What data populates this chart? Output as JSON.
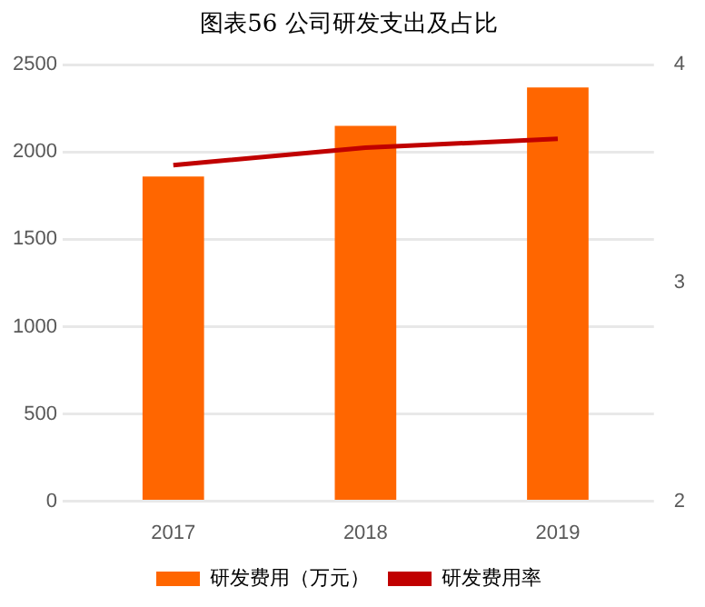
{
  "chart_data": {
    "type": "bar",
    "title": "图表56 公司研发支出及占比",
    "categories": [
      "2017",
      "2018",
      "2019"
    ],
    "series": [
      {
        "name": "研发费用（万元）",
        "color": "#ff6600",
        "values": [
          1860,
          2150,
          2370
        ]
      },
      {
        "name": "研发费用率",
        "type": "line",
        "axis": "y2",
        "color": "#c00000",
        "values": [
          3.54,
          3.62,
          3.66
        ]
      }
    ],
    "ylim": [
      0,
      2500
    ],
    "yticks": [
      0,
      500,
      1000,
      1500,
      2000,
      2500
    ],
    "y2lim": [
      2,
      4
    ],
    "y2ticks": [
      2,
      3,
      4
    ],
    "grid": "y",
    "legend": "bottom",
    "marker": "none"
  }
}
